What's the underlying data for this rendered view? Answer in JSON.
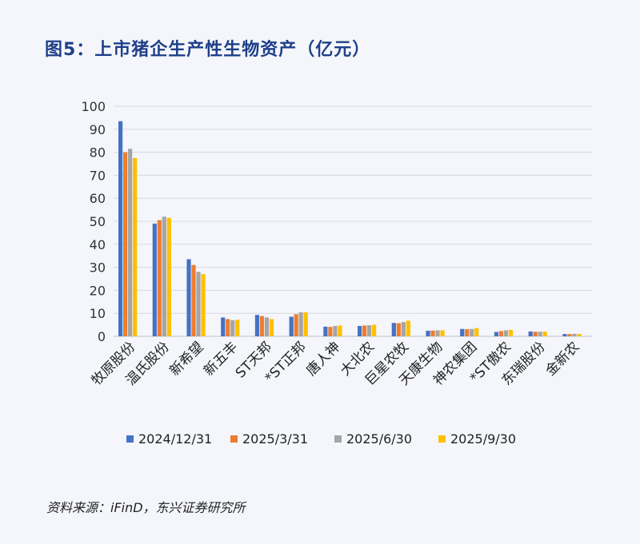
{
  "header": {
    "title": "图5：上市猪企生产性生物资产（亿元）"
  },
  "footer": {
    "source": "资料来源：iFinD，东兴证券研究所"
  },
  "colors": {
    "series": [
      "#4472c4",
      "#ed7d31",
      "#a5a5a5",
      "#ffc000"
    ],
    "title": "#1f3f8a"
  },
  "chart_data": {
    "type": "bar",
    "title": "上市猪企生产性生物资产（亿元）",
    "xlabel": "",
    "ylabel": "",
    "ylim": [
      0,
      100
    ],
    "yticks": [
      0,
      10,
      20,
      30,
      40,
      50,
      60,
      70,
      80,
      90,
      100
    ],
    "grid": true,
    "legend_position": "bottom",
    "categories": [
      "牧原股份",
      "温氏股份",
      "新希望",
      "新五丰",
      "ST天邦",
      "*ST正邦",
      "唐人神",
      "大北农",
      "巨星农牧",
      "天康生物",
      "神农集团",
      "*ST傲农",
      "东瑞股份",
      "金新农"
    ],
    "series": [
      {
        "name": "2024/12/31",
        "values": [
          93.5,
          49,
          33.5,
          8.2,
          9.3,
          8.5,
          4.2,
          4.5,
          5.8,
          2.4,
          3.2,
          1.9,
          2.1,
          1.0
        ]
      },
      {
        "name": "2025/3/31",
        "values": [
          80,
          50.5,
          31,
          7.5,
          8.8,
          9.6,
          4.1,
          4.7,
          5.7,
          2.5,
          3.1,
          2.3,
          2.0,
          1.0
        ]
      },
      {
        "name": "2025/6/30",
        "values": [
          81.5,
          52,
          28,
          7,
          8.2,
          10.4,
          4.5,
          4.8,
          6.2,
          2.6,
          3.2,
          2.6,
          2.0,
          1.1
        ]
      },
      {
        "name": "2025/9/30",
        "values": [
          77.5,
          51.5,
          27,
          7.2,
          7.5,
          10.4,
          4.7,
          5.0,
          6.8,
          2.6,
          3.6,
          2.8,
          2.0,
          1.0
        ]
      }
    ]
  }
}
